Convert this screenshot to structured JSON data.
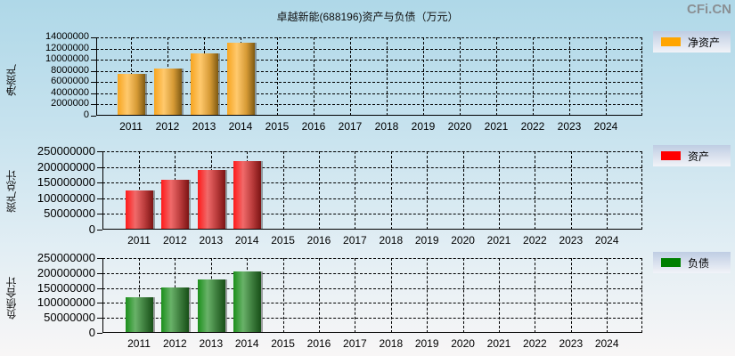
{
  "title": "卓越新能(688196)资产与负债（万元）",
  "watermark": "CFi.CN",
  "chart_data": [
    {
      "type": "bar",
      "title": "卓越新能(688196)资产与负债（万元）",
      "ylabel": "净资产",
      "legend": "净资产",
      "color": "#ffa500",
      "categories": [
        "2011",
        "2012",
        "2013",
        "2014",
        "2015",
        "2016",
        "2017",
        "2018",
        "2019",
        "2020",
        "2021",
        "2022",
        "2023",
        "2024"
      ],
      "values": [
        7500000,
        8400000,
        11100000,
        13000000,
        200000,
        200000,
        200000,
        200000,
        200000,
        200000,
        200000,
        200000,
        200000,
        200000
      ],
      "ylim": [
        0,
        14000000
      ],
      "yticks": [
        "14000000",
        "12000000",
        "10000000",
        "8000000",
        "6000000",
        "4000000",
        "2000000",
        "0"
      ],
      "grid": true
    },
    {
      "type": "bar",
      "ylabel": "资产总计",
      "legend": "资产",
      "color": "#ff0000",
      "categories": [
        "2011",
        "2012",
        "2013",
        "2014",
        "2015",
        "2016",
        "2017",
        "2018",
        "2019",
        "2020",
        "2021",
        "2022",
        "2023",
        "2024"
      ],
      "values": [
        125000000,
        159000000,
        190000000,
        219000000,
        1500000,
        1500000,
        1500000,
        1500000,
        1500000,
        1500000,
        1500000,
        1500000,
        1500000,
        1500000
      ],
      "ylim": [
        0,
        250000000
      ],
      "yticks": [
        "250000000",
        "200000000",
        "150000000",
        "100000000",
        "50000000",
        "0"
      ],
      "grid": true
    },
    {
      "type": "bar",
      "ylabel": "负债合计",
      "legend": "负债",
      "color": "#008000",
      "categories": [
        "2011",
        "2012",
        "2013",
        "2014",
        "2015",
        "2016",
        "2017",
        "2018",
        "2019",
        "2020",
        "2021",
        "2022",
        "2023",
        "2024"
      ],
      "values": [
        119000000,
        152000000,
        178000000,
        205000000,
        1500000,
        1500000,
        1500000,
        1500000,
        1500000,
        1500000,
        1500000,
        1500000,
        1500000,
        1500000
      ],
      "ylim": [
        0,
        250000000
      ],
      "yticks": [
        "250000000",
        "200000000",
        "150000000",
        "100000000",
        "50000000",
        "0"
      ],
      "grid": true
    }
  ]
}
